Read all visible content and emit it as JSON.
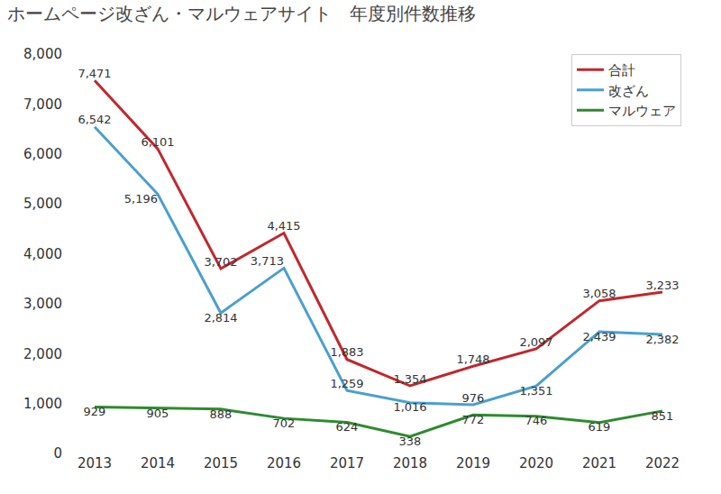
{
  "chart_data": {
    "type": "line",
    "title": "ホームページ改ざん・マルウェアサイト　年度別件数推移",
    "categories": [
      "2013",
      "2014",
      "2015",
      "2016",
      "2017",
      "2018",
      "2019",
      "2020",
      "2021",
      "2022"
    ],
    "series": [
      {
        "name": "合計",
        "color": "#c0282d",
        "values": [
          7471,
          6101,
          3702,
          4415,
          1883,
          1354,
          1748,
          2097,
          3058,
          3233
        ],
        "value_labels": [
          "7,471",
          "6,101",
          "3,702",
          "4,415",
          "1,883",
          "1,354",
          "1,748",
          "2,097",
          "3,058",
          "3,233"
        ]
      },
      {
        "name": "改ざん",
        "color": "#4a9fd0",
        "values": [
          6542,
          5196,
          2814,
          3713,
          1259,
          1016,
          976,
          1351,
          2439,
          2382
        ],
        "value_labels": [
          "6,542",
          "5,196",
          "2,814",
          "3,713",
          "1,259",
          "1,016",
          "976",
          "1,351",
          "2,439",
          "2,382"
        ]
      },
      {
        "name": "マルウェア",
        "color": "#2e8b2e",
        "values": [
          929,
          905,
          888,
          702,
          624,
          338,
          772,
          746,
          619,
          851
        ],
        "value_labels": [
          "929",
          "905",
          "888",
          "702",
          "624",
          "338",
          "772",
          "746",
          "619",
          "851"
        ]
      }
    ],
    "ylim": [
      0,
      8000
    ],
    "yticks": [
      0,
      {
        "value": 1000,
        "label": "1,000"
      },
      {
        "value": 2000,
        "label": "2,000"
      },
      {
        "value": 3000,
        "label": "3,000"
      },
      {
        "value": 4000,
        "label": "4,000"
      },
      {
        "value": 5000,
        "label": "5,000"
      },
      {
        "value": 6000,
        "label": "6,000"
      },
      {
        "value": 7000,
        "label": "7,000"
      },
      {
        "value": 8000,
        "label": "8,000"
      }
    ],
    "grid": false,
    "legend": "top right",
    "data_labels": true
  }
}
